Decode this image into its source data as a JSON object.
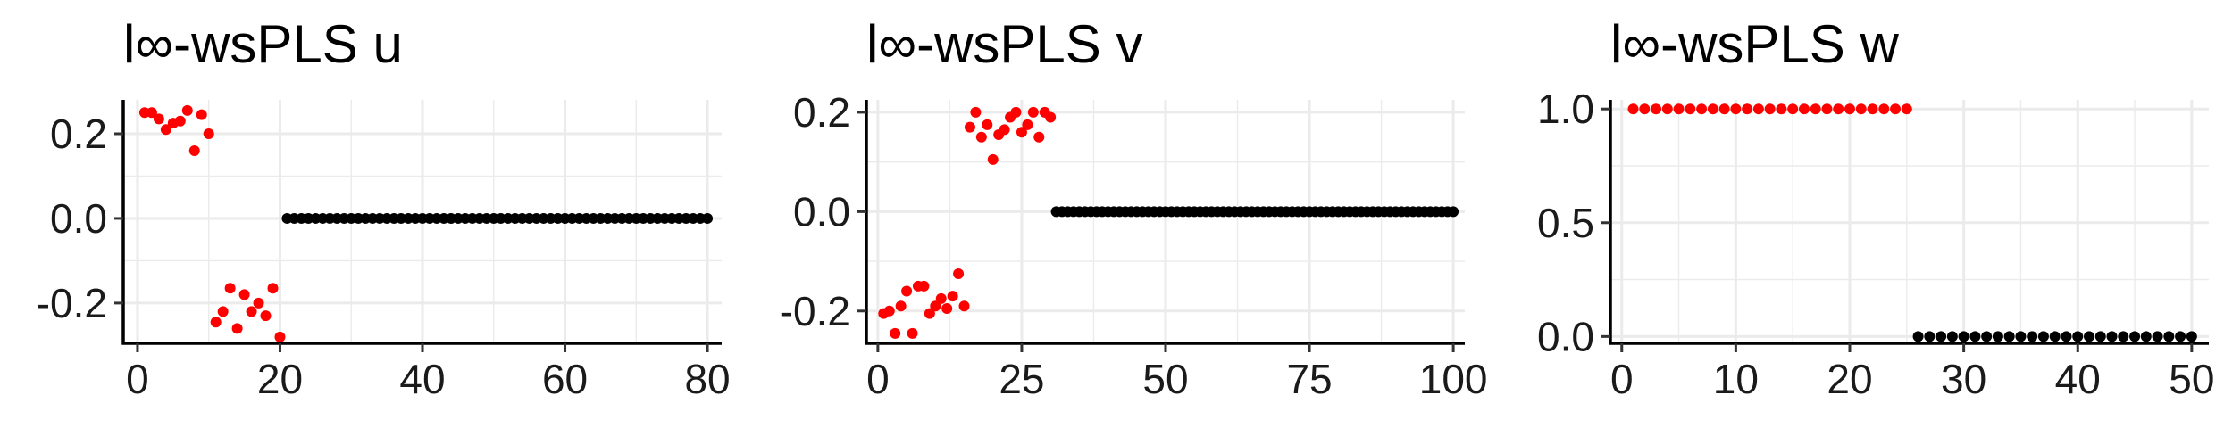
{
  "colors": {
    "highlight": "#ff0000",
    "base": "#000000",
    "grid": "#ebebeb"
  },
  "chart_data": [
    {
      "type": "scatter",
      "title": "l∞-wsPLS u",
      "xlim": [
        -2,
        82
      ],
      "ylim": [
        -0.295,
        0.28
      ],
      "xticks": [
        0,
        20,
        40,
        60,
        80
      ],
      "xtick_labels": [
        "0",
        "20",
        "40",
        "60",
        "80"
      ],
      "yticks": [
        -0.2,
        0.0,
        0.2
      ],
      "ytick_labels": [
        "-0.2",
        "0.0",
        "0.2"
      ],
      "grid": true,
      "series": [
        {
          "color": "red",
          "x": [
            1,
            2,
            3,
            4,
            5,
            6,
            7,
            8,
            9,
            10,
            11,
            12,
            13,
            14,
            15,
            16,
            17,
            18,
            19,
            20
          ],
          "y": [
            0.25,
            0.25,
            0.235,
            0.21,
            0.225,
            0.23,
            0.255,
            0.16,
            0.245,
            0.2,
            -0.245,
            -0.22,
            -0.165,
            -0.26,
            -0.18,
            -0.22,
            -0.2,
            -0.23,
            -0.165,
            -0.28
          ]
        },
        {
          "color": "black",
          "x_range": [
            21,
            80
          ],
          "y_const": 0
        }
      ]
    },
    {
      "type": "scatter",
      "title": "l∞-wsPLS v",
      "xlim": [
        -2,
        102
      ],
      "ylim": [
        -0.265,
        0.225
      ],
      "xticks": [
        0,
        25,
        50,
        75,
        100
      ],
      "xtick_labels": [
        "0",
        "25",
        "50",
        "75",
        "100"
      ],
      "yticks": [
        -0.2,
        0.0,
        0.2
      ],
      "ytick_labels": [
        "-0.2",
        "0.0",
        "0.2"
      ],
      "grid": true,
      "series": [
        {
          "color": "red",
          "x": [
            1,
            2,
            3,
            4,
            5,
            6,
            7,
            8,
            9,
            10,
            11,
            12,
            13,
            14,
            15,
            16,
            17,
            18,
            19,
            20,
            21,
            22,
            23,
            24,
            25,
            26,
            27,
            28,
            29,
            30
          ],
          "y": [
            -0.205,
            -0.2,
            -0.245,
            -0.19,
            -0.16,
            -0.245,
            -0.15,
            -0.15,
            -0.205,
            -0.19,
            -0.175,
            -0.195,
            -0.17,
            -0.125,
            -0.19,
            0.17,
            0.2,
            0.15,
            0.175,
            0.105,
            0.155,
            0.165,
            0.19,
            0.2,
            0.16,
            0.175,
            0.2,
            0.15,
            0.2,
            0.19
          ]
        },
        {
          "color": "black",
          "x_range": [
            31,
            100
          ],
          "y_const": 0
        }
      ]
    },
    {
      "type": "scatter",
      "title": "l∞-wsPLS w",
      "xlim": [
        -1,
        51.5
      ],
      "ylim": [
        -0.03,
        1.04
      ],
      "xticks": [
        0,
        10,
        20,
        30,
        40,
        50
      ],
      "xtick_labels": [
        "0",
        "10",
        "20",
        "30",
        "40",
        "50"
      ],
      "yticks": [
        0.0,
        0.5,
        1.0
      ],
      "ytick_labels": [
        "0.0",
        "0.5",
        "1.0"
      ],
      "grid": true,
      "series": [
        {
          "color": "red",
          "x_range": [
            1,
            25
          ],
          "y_const": 1
        },
        {
          "color": "black",
          "x_range": [
            26,
            50
          ],
          "y_const": 0
        }
      ]
    }
  ]
}
